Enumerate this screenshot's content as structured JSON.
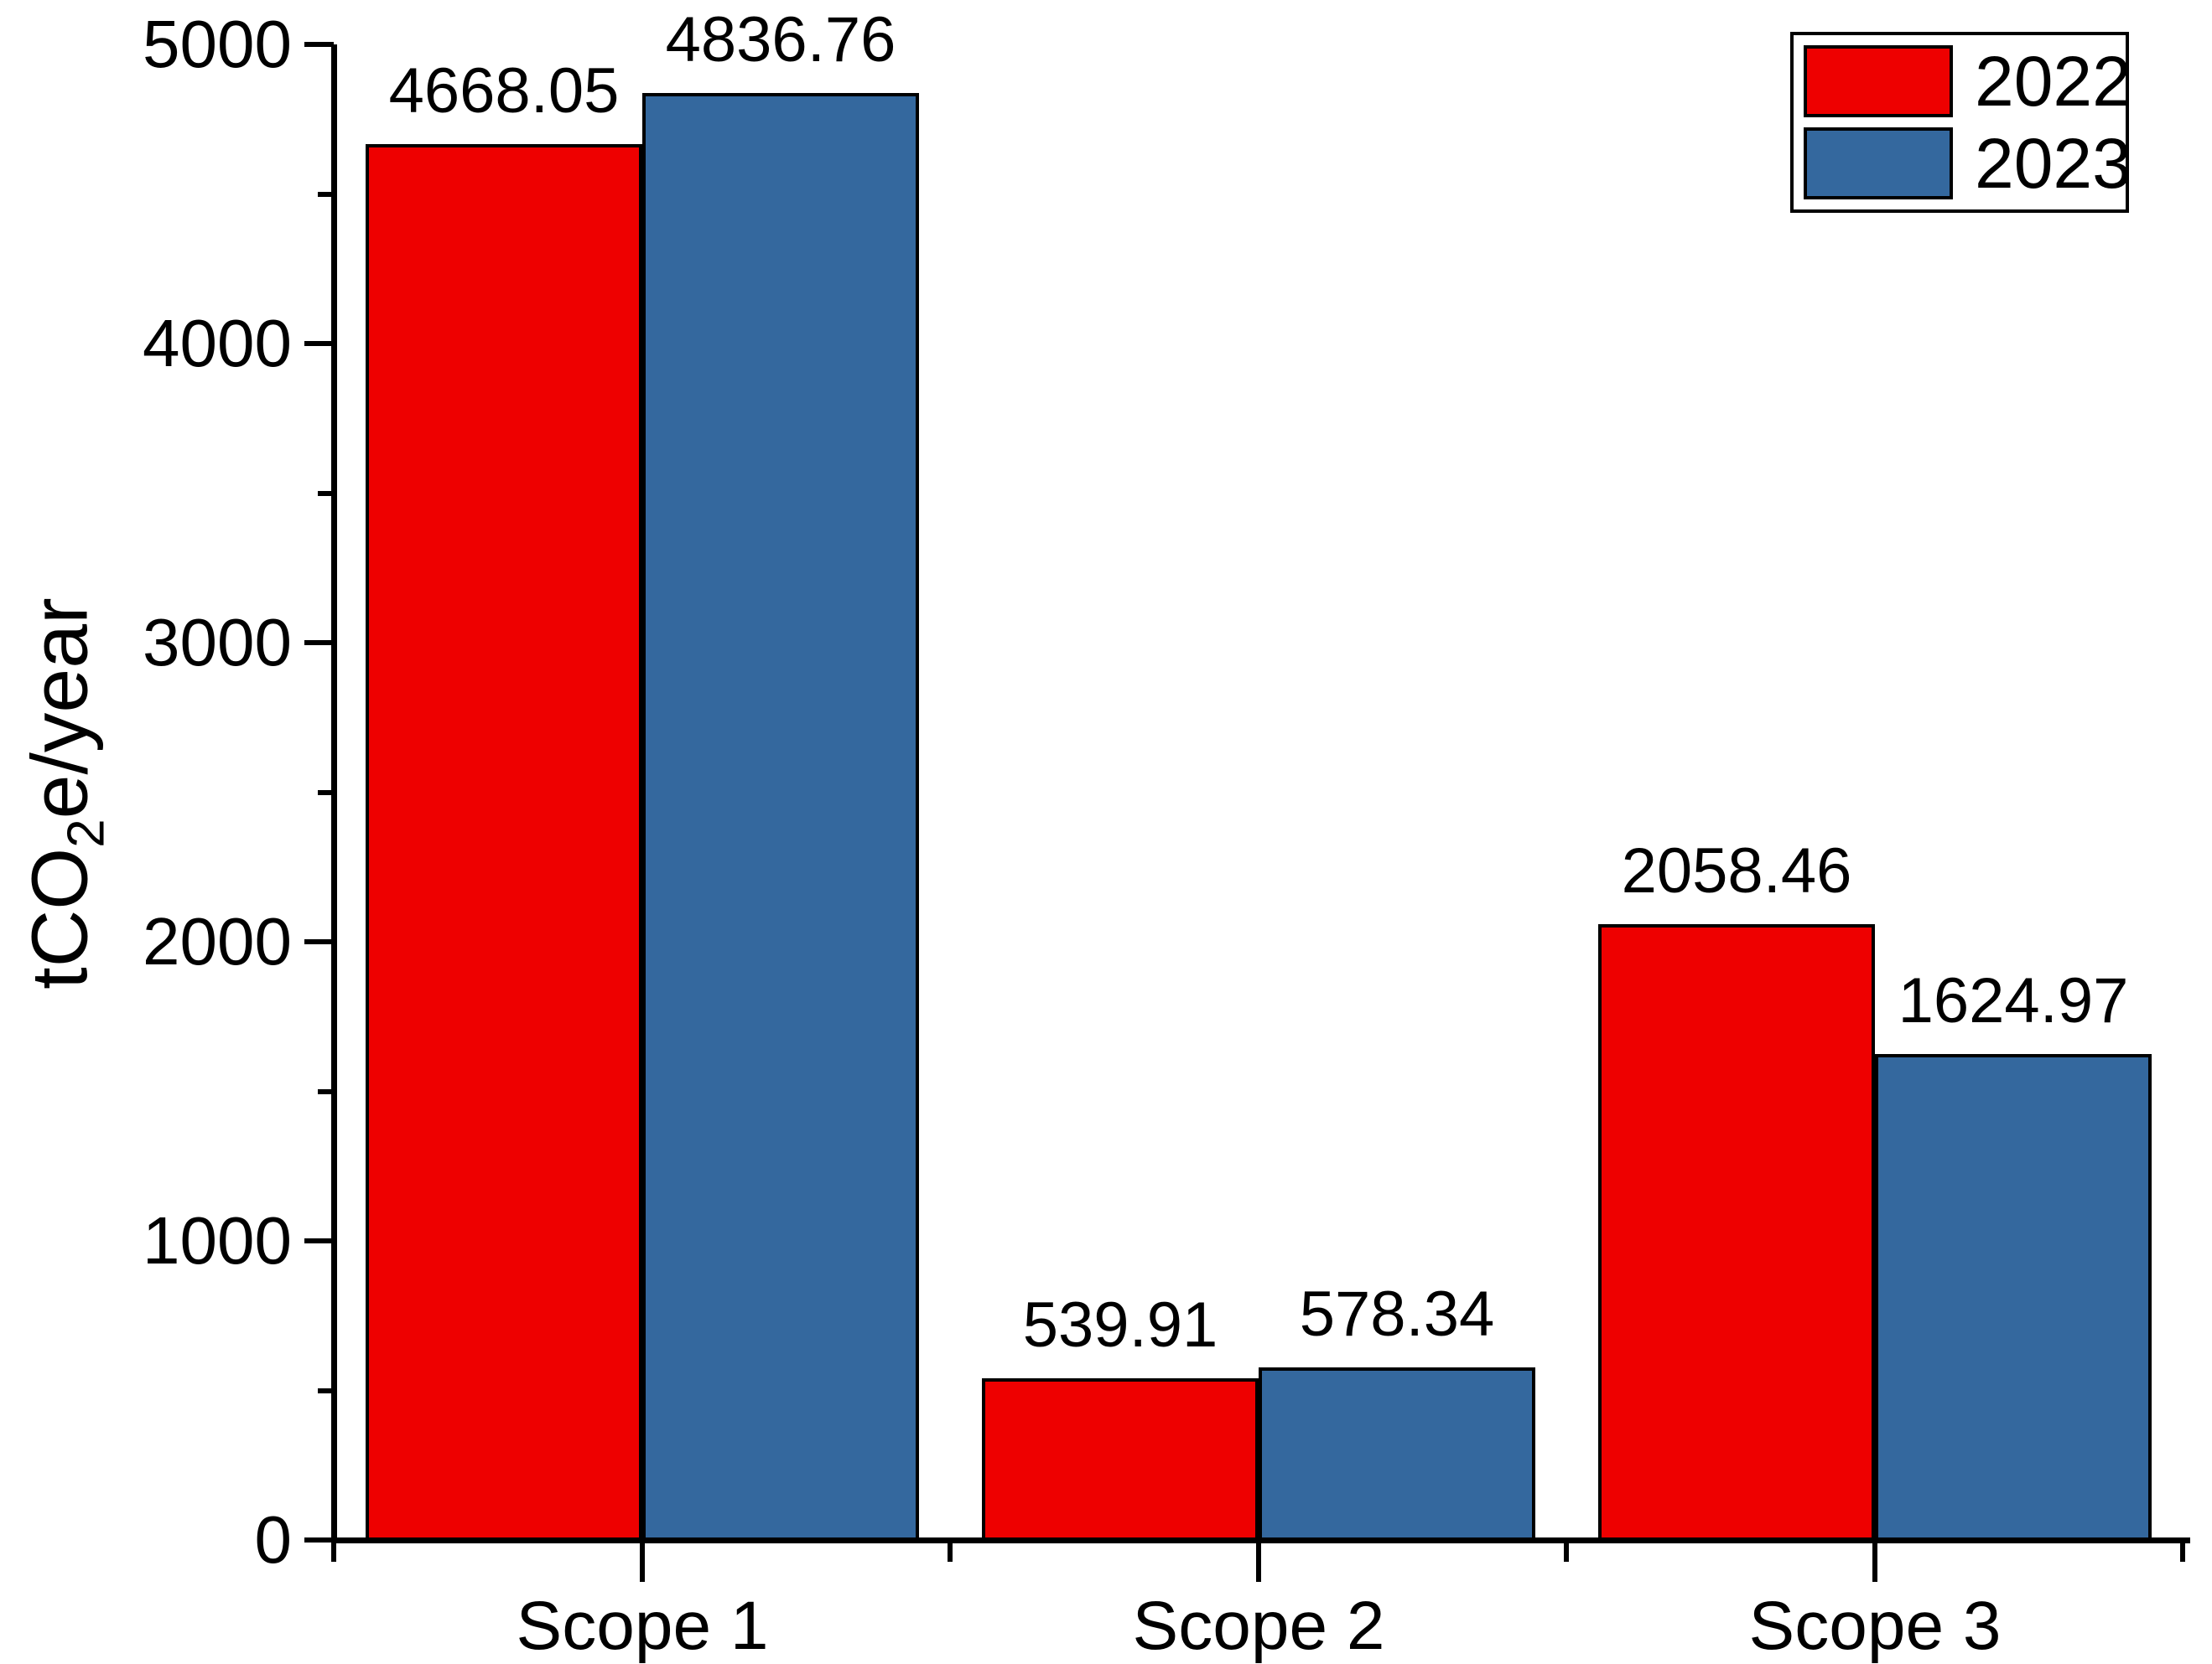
{
  "chart_data": {
    "type": "bar",
    "title": "",
    "categories": [
      "Scope 1",
      "Scope 2",
      "Scope 3"
    ],
    "series": [
      {
        "name": "2022",
        "color": "#ee0000",
        "values": [
          4668.05,
          539.91,
          2058.46
        ]
      },
      {
        "name": "2023",
        "color": "#34689e",
        "values": [
          4836.76,
          578.34,
          1624.97
        ]
      }
    ],
    "value_label_decimals": 2,
    "ylabel": "tCO2e/year",
    "ylabel_parts": {
      "pre": "tCO",
      "sub": "2",
      "post": "e/year"
    },
    "ylim": [
      0,
      5000
    ],
    "yticks": [
      0,
      1000,
      2000,
      3000,
      4000,
      5000
    ],
    "y_minor_step": 500,
    "grid": false,
    "legend_position": "top-right",
    "bar_edge_color": "#000000",
    "axis_color": "#000000",
    "background_color": "#ffffff"
  }
}
